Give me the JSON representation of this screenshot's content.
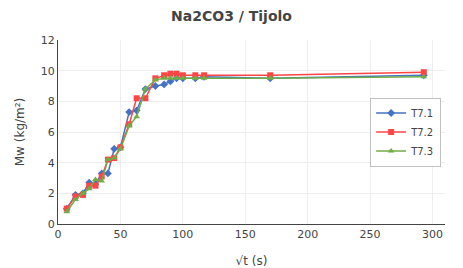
{
  "chart_data": {
    "type": "line",
    "title": "Na2CO3 / Tijolo",
    "x_label": "√t (s)",
    "y_label": "Mw (kg/m²)",
    "xlim": [
      0,
      310
    ],
    "ylim": [
      0,
      12
    ],
    "xticks": [
      0,
      50,
      100,
      150,
      200,
      250,
      300
    ],
    "yticks": [
      0,
      2,
      4,
      6,
      8,
      10,
      12
    ],
    "grid": true,
    "legend": "right",
    "series": [
      {
        "name": "T7.1",
        "color": "#4472C4",
        "marker": "diamond",
        "x": [
          7,
          14,
          20,
          25,
          30,
          35,
          40,
          45,
          50,
          57,
          63,
          70,
          78,
          85,
          90,
          95,
          100,
          110,
          117,
          170,
          293
        ],
        "values": [
          1.0,
          1.9,
          2.0,
          2.7,
          2.6,
          3.3,
          3.3,
          4.9,
          5.0,
          7.3,
          7.4,
          8.8,
          9.0,
          9.1,
          9.3,
          9.5,
          9.5,
          9.5,
          9.6,
          9.5,
          9.7
        ]
      },
      {
        "name": "T7.2",
        "color": "#FF4444",
        "marker": "square",
        "x": [
          7,
          14,
          20,
          25,
          30,
          35,
          40,
          45,
          50,
          57,
          63,
          70,
          78,
          85,
          90,
          95,
          100,
          110,
          117,
          170,
          293
        ],
        "values": [
          1.0,
          1.8,
          1.9,
          2.5,
          2.5,
          3.1,
          4.2,
          4.3,
          5.0,
          6.5,
          8.2,
          8.2,
          9.5,
          9.7,
          9.8,
          9.8,
          9.7,
          9.7,
          9.7,
          9.7,
          9.9
        ]
      },
      {
        "name": "T7.3",
        "color": "#70AD47",
        "marker": "triangle-up",
        "x": [
          7,
          14,
          20,
          25,
          30,
          35,
          40,
          45,
          50,
          57,
          63,
          70,
          78,
          85,
          90,
          95,
          100,
          110,
          117,
          170,
          293
        ],
        "values": [
          0.8,
          1.6,
          2.0,
          2.3,
          2.9,
          2.8,
          4.2,
          4.3,
          4.9,
          6.4,
          7.0,
          8.8,
          9.4,
          9.5,
          9.5,
          9.5,
          9.5,
          9.5,
          9.5,
          9.5,
          9.6
        ]
      }
    ]
  }
}
